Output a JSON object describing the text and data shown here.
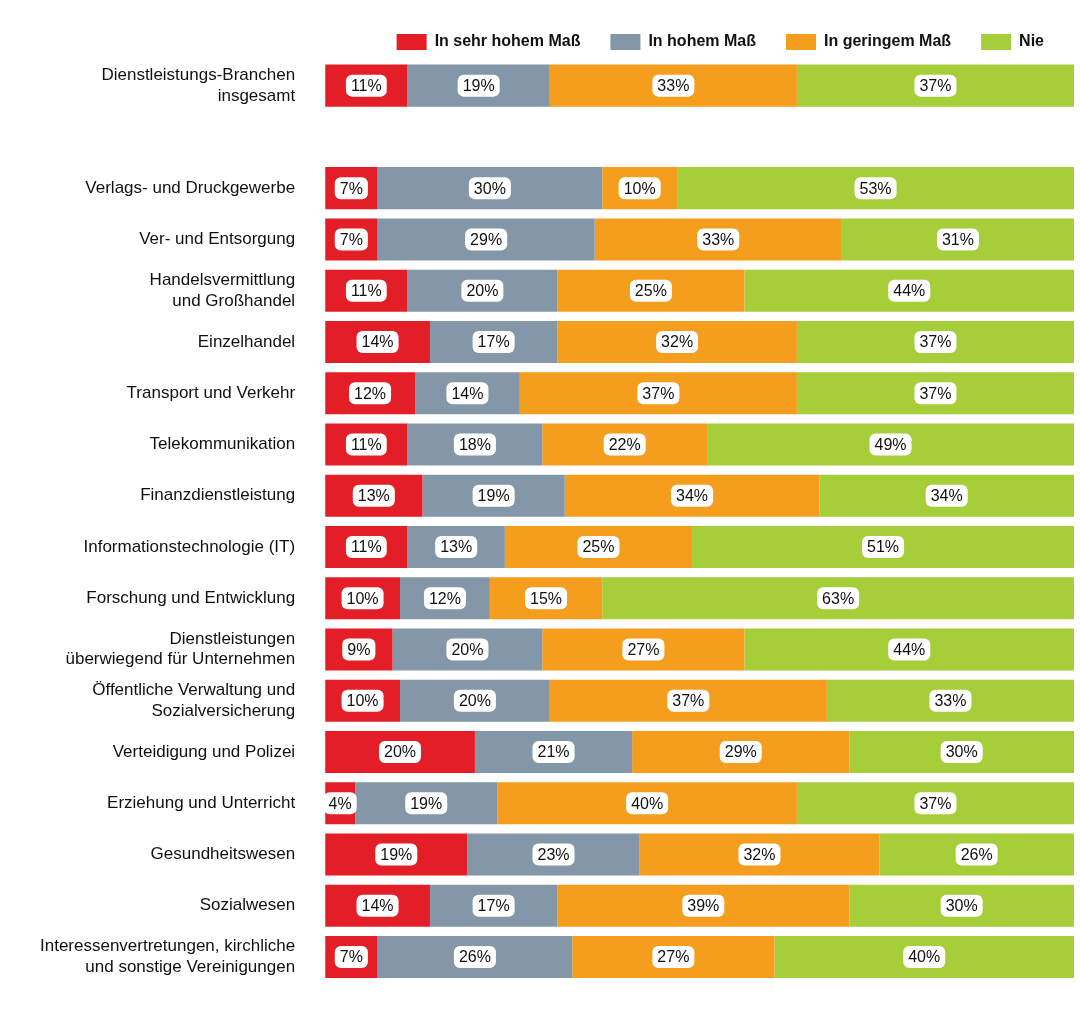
{
  "chart_data": {
    "type": "bar",
    "orientation": "horizontal",
    "stacked": true,
    "legend": "top right",
    "grid": false,
    "tick_labels": "y",
    "xlim": [
      0,
      100
    ],
    "categories": [
      "Dienstleistungs-Branchen\ninsgesamt",
      null,
      "Verlags- und Druckgewerbe",
      "Ver- und Entsorgung",
      "Handelsvermittlung\nund Großhandel",
      "Einzelhandel",
      "Transport und Verkehr",
      "Telekommunikation",
      "Finanzdienstleistung",
      "Informationstechnologie (IT)",
      "Forschung und Entwicklung",
      "Dienstleistungen\nüberwiegend für Unternehmen",
      "Öffentliche Verwaltung und\nSozialversicherung",
      "Verteidigung und Polizei",
      "Erziehung und Unterricht",
      "Gesundheitswesen",
      "Sozialwesen",
      "Interessenvertretungen, kirchliche\nund sonstige Vereinigungen"
    ],
    "series": [
      {
        "name": "In sehr hohem Maß",
        "color": "#e41e26",
        "values": [
          11,
          null,
          7,
          7,
          11,
          14,
          12,
          11,
          13,
          11,
          10,
          9,
          10,
          20,
          4,
          19,
          14,
          7
        ],
        "value_labels": [
          "11%",
          null,
          "7%",
          "7%",
          "11%",
          "14%",
          "12%",
          "11%",
          "13%",
          "11%",
          "10%",
          "9%",
          "10%",
          "20%",
          "4%",
          "19%",
          "14%",
          "7%"
        ]
      },
      {
        "name": "In hohem Maß",
        "color": "#8497a8",
        "values": [
          19,
          null,
          30,
          29,
          20,
          17,
          14,
          18,
          19,
          13,
          12,
          20,
          20,
          21,
          19,
          23,
          17,
          26
        ],
        "value_labels": [
          "19%",
          null,
          "30%",
          "29%",
          "20%",
          "17%",
          "14%",
          "18%",
          "19%",
          "13%",
          "12%",
          "20%",
          "20%",
          "21%",
          "19%",
          "23%",
          "17%",
          "26%"
        ]
      },
      {
        "name": "In geringem Maß",
        "color": "#f59d1d",
        "values": [
          33,
          null,
          10,
          33,
          25,
          32,
          37,
          22,
          34,
          25,
          15,
          27,
          37,
          29,
          40,
          32,
          39,
          27
        ],
        "value_labels": [
          "33%",
          null,
          "10%",
          "33%",
          "25%",
          "32%",
          "37%",
          "22%",
          "34%",
          "25%",
          "15%",
          "27%",
          "37%",
          "29%",
          "40%",
          "32%",
          "39%",
          "27%"
        ]
      },
      {
        "name": "Nie",
        "color": "#a5ce39",
        "values": [
          37,
          null,
          53,
          31,
          44,
          37,
          37,
          49,
          34,
          51,
          63,
          44,
          33,
          30,
          37,
          26,
          30,
          40
        ],
        "value_labels": [
          "37%",
          null,
          "53%",
          "31%",
          "44%",
          "37%",
          "37%",
          "49%",
          "34%",
          "51%",
          "63%",
          "44%",
          "33%",
          "30%",
          "37%",
          "26%",
          "30%",
          "40%"
        ]
      }
    ]
  }
}
